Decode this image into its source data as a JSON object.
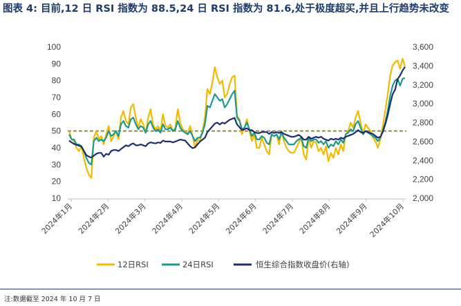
{
  "figure": {
    "label": "图表 4:",
    "title": "目前,12 日 RSI 指数为 88.5,24 日 RSI 指数为 81.6,处于极度超买,并且上行趋势未改变",
    "note": "注:数据截至 2024 年 10 月 7 日"
  },
  "colors": {
    "rsi12": "#f5b800",
    "rsi24": "#1b9a8c",
    "index": "#1c2d6e",
    "ref": "#8a8a54"
  },
  "chart_data": {
    "type": "line",
    "title": "目前,12 日 RSI 指数为 88.5,24 日 RSI 指数为 81.6,处于极度超买,并且上行趋势未改变",
    "x_ticks": [
      "2024年1月",
      "2024年2月",
      "2024年3月",
      "2024年4月",
      "2024年5月",
      "2024年6月",
      "2024年7月",
      "2024年8月",
      "2024年9月",
      "2024年10月"
    ],
    "y_left": {
      "range": [
        10,
        100
      ],
      "ticks": [
        "100",
        "90",
        "80",
        "70",
        "60",
        "50",
        "40",
        "30",
        "20",
        "10"
      ]
    },
    "y_right": {
      "range": [
        2000,
        3600
      ],
      "ticks": [
        "3,600",
        "3,400",
        "3,200",
        "3,000",
        "2,800",
        "2,600",
        "2,400",
        "2,200",
        "2,000"
      ]
    },
    "reference_line": {
      "axis": "left",
      "value": 50,
      "style": "dashed"
    },
    "series": [
      {
        "name": "12日RSI",
        "axis": "left",
        "values": [
          50,
          45,
          44,
          40,
          38,
          41,
          34,
          28,
          24,
          22,
          46,
          50,
          45,
          47,
          42,
          48,
          53,
          44,
          47,
          50,
          45,
          58,
          62,
          56,
          54,
          64,
          66,
          58,
          52,
          57,
          54,
          49,
          58,
          63,
          54,
          51,
          53,
          50,
          60,
          53,
          52,
          54,
          50,
          52,
          63,
          55,
          51,
          50,
          48,
          53,
          47,
          40,
          45,
          44,
          50,
          58,
          75,
          72,
          79,
          88,
          82,
          78,
          80,
          70,
          72,
          78,
          82,
          83,
          59,
          57,
          48,
          52,
          57,
          50,
          44,
          48,
          40,
          40,
          46,
          42,
          38,
          36,
          48,
          47,
          48,
          42,
          50,
          44,
          40,
          38,
          37,
          37,
          40,
          43,
          46,
          36,
          33,
          46,
          40,
          44,
          43,
          38,
          40,
          36,
          41,
          32,
          37,
          34,
          40,
          36,
          42,
          38,
          48,
          50,
          55,
          52,
          58,
          62,
          55,
          48,
          54,
          52,
          50,
          46,
          44,
          40,
          45,
          53,
          62,
          72,
          83,
          89,
          91,
          92,
          87,
          93,
          88.5
        ]
      },
      {
        "name": "24日RSI",
        "axis": "left",
        "values": [
          48,
          45,
          45,
          42,
          42,
          41,
          38,
          34,
          31,
          30,
          44,
          46,
          44,
          45,
          44,
          46,
          50,
          47,
          48,
          50,
          47,
          54,
          56,
          53,
          52,
          57,
          58,
          54,
          51,
          53,
          52,
          49,
          54,
          56,
          52,
          50,
          51,
          49,
          54,
          51,
          51,
          52,
          50,
          51,
          56,
          52,
          50,
          49,
          48,
          50,
          47,
          44,
          46,
          46,
          49,
          54,
          65,
          64,
          68,
          72,
          70,
          68,
          69,
          64,
          66,
          69,
          72,
          74,
          58,
          56,
          51,
          52,
          55,
          51,
          47,
          49,
          45,
          45,
          47,
          46,
          43,
          42,
          48,
          47,
          48,
          45,
          49,
          46,
          44,
          42,
          42,
          42,
          44,
          45,
          46,
          41,
          40,
          46,
          44,
          45,
          45,
          43,
          44,
          42,
          44,
          40,
          42,
          41,
          44,
          42,
          45,
          43,
          48,
          49,
          51,
          50,
          54,
          56,
          52,
          48,
          50,
          49,
          48,
          47,
          46,
          44,
          46,
          50,
          55,
          62,
          71,
          77,
          80,
          81,
          77,
          81,
          81.6
        ]
      },
      {
        "name": "恒生综合指数收盘价(右轴)",
        "axis": "right",
        "values": [
          2610,
          2590,
          2575,
          2565,
          2555,
          2545,
          2500,
          2455,
          2440,
          2430,
          2450,
          2470,
          2480,
          2480,
          2440,
          2470,
          2460,
          2500,
          2510,
          2510,
          2500,
          2520,
          2540,
          2560,
          2550,
          2570,
          2580,
          2560,
          2560,
          2570,
          2560,
          2550,
          2580,
          2590,
          2585,
          2580,
          2590,
          2585,
          2610,
          2600,
          2600,
          2600,
          2590,
          2600,
          2610,
          2620,
          2615,
          2610,
          2580,
          2550,
          2530,
          2540,
          2570,
          2600,
          2620,
          2640,
          2700,
          2730,
          2760,
          2790,
          2800,
          2780,
          2800,
          2790,
          2810,
          2830,
          2840,
          2850,
          2780,
          2750,
          2720,
          2730,
          2740,
          2720,
          2720,
          2700,
          2690,
          2690,
          2700,
          2700,
          2700,
          2680,
          2700,
          2690,
          2700,
          2690,
          2700,
          2680,
          2670,
          2660,
          2650,
          2650,
          2660,
          2670,
          2650,
          2620,
          2620,
          2650,
          2630,
          2640,
          2650,
          2640,
          2650,
          2630,
          2620,
          2610,
          2630,
          2620,
          2630,
          2620,
          2640,
          2630,
          2650,
          2660,
          2670,
          2680,
          2700,
          2720,
          2700,
          2690,
          2710,
          2700,
          2690,
          2680,
          2660,
          2640,
          2650,
          2700,
          2780,
          2880,
          3000,
          3100,
          3150,
          3260,
          3300,
          3350,
          3390
        ]
      }
    ],
    "legend": [
      "12日RSI",
      "24日RSI",
      "恒生综合指数收盘价(右轴)"
    ],
    "legend_position": "bottom"
  }
}
